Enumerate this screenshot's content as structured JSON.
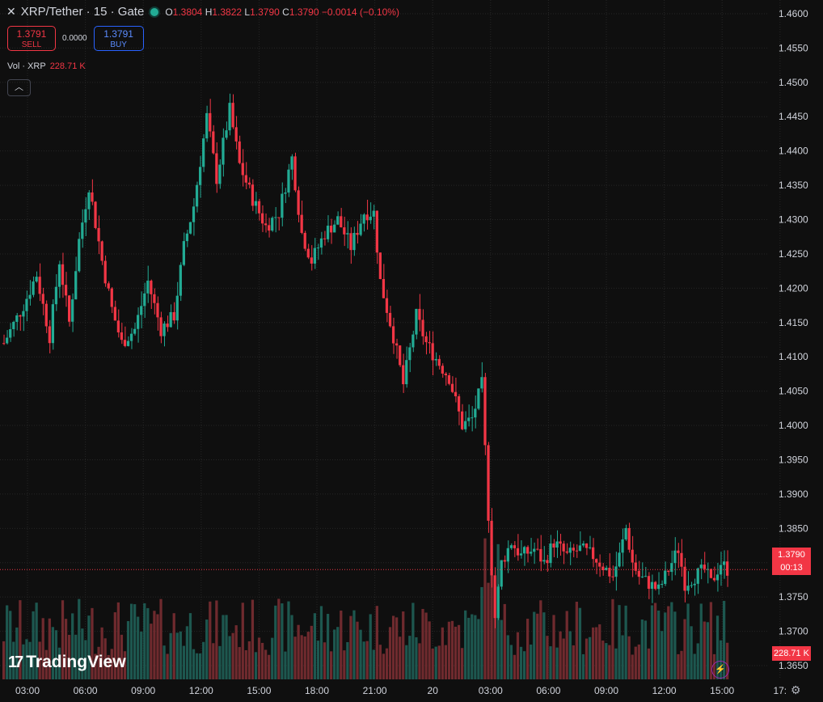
{
  "header": {
    "symbol": "XRP/Tether · 15 · Gate",
    "o_label": "O",
    "o": "1.3804",
    "h_label": "H",
    "h": "1.3822",
    "l_label": "L",
    "l": "1.3790",
    "c_label": "C",
    "c": "1.3790",
    "change": "−0.0014 (−0.10%)"
  },
  "trade": {
    "sell_price": "1.3791",
    "sell_label": "SELL",
    "spread": "0.0000",
    "buy_price": "1.3791",
    "buy_label": "BUY"
  },
  "volume": {
    "label": "Vol · XRP",
    "value": "228.71 K"
  },
  "price_tag": {
    "price": "1.3790",
    "countdown": "00:13"
  },
  "branding": "TradingView",
  "icons": [
    "close-icon",
    "status-dot-icon",
    "collapse-chevron-icon",
    "tradingview-logo-icon",
    "lightning-icon",
    "gear-icon"
  ],
  "colors": {
    "up": "#22ab94",
    "down": "#f23645",
    "background": "#0f0f0f",
    "grid": "#262626"
  },
  "chart_data": {
    "type": "candlestick",
    "y_ticks": [
      "1.4600",
      "1.4550",
      "1.4500",
      "1.4450",
      "1.4400",
      "1.4350",
      "1.4300",
      "1.4250",
      "1.4200",
      "1.4150",
      "1.4100",
      "1.4050",
      "1.4000",
      "1.3950",
      "1.3900",
      "1.3850",
      "1.3800",
      "1.3750",
      "1.3700",
      "1.3650"
    ],
    "ylim": [
      1.363,
      1.462
    ],
    "x_ticks": [
      "03:00",
      "06:00",
      "09:00",
      "12:00",
      "15:00",
      "18:00",
      "21:00",
      "20",
      "03:00",
      "06:00",
      "09:00",
      "12:00",
      "15:00",
      "17:"
    ],
    "grid": true,
    "last_price": 1.379,
    "close_path": [
      [
        0,
        1.412
      ],
      [
        6,
        1.4175
      ],
      [
        10,
        1.422
      ],
      [
        14,
        1.413
      ],
      [
        17,
        1.424
      ],
      [
        20,
        1.415
      ],
      [
        23,
        1.427
      ],
      [
        26,
        1.435
      ],
      [
        30,
        1.424
      ],
      [
        33,
        1.417
      ],
      [
        36,
        1.412
      ],
      [
        40,
        1.414
      ],
      [
        44,
        1.421
      ],
      [
        48,
        1.414
      ],
      [
        52,
        1.416
      ],
      [
        55,
        1.426
      ],
      [
        58,
        1.432
      ],
      [
        62,
        1.445
      ],
      [
        65,
        1.436
      ],
      [
        69,
        1.446
      ],
      [
        72,
        1.438
      ],
      [
        76,
        1.433
      ],
      [
        80,
        1.429
      ],
      [
        84,
        1.431
      ],
      [
        88,
        1.439
      ],
      [
        91,
        1.428
      ],
      [
        94,
        1.424
      ],
      [
        98,
        1.428
      ],
      [
        102,
        1.43
      ],
      [
        106,
        1.426
      ],
      [
        110,
        1.431
      ],
      [
        113,
        1.431
      ],
      [
        115,
        1.421
      ],
      [
        119,
        1.413
      ],
      [
        122,
        1.406
      ],
      [
        126,
        1.416
      ],
      [
        129,
        1.412
      ],
      [
        133,
        1.409
      ],
      [
        136,
        1.407
      ],
      [
        140,
        1.4
      ],
      [
        143,
        1.401
      ],
      [
        146,
        1.406
      ],
      [
        148,
        1.387
      ],
      [
        149,
        1.379
      ],
      [
        150,
        1.372
      ],
      [
        152,
        1.38
      ],
      [
        155,
        1.383
      ],
      [
        158,
        1.381
      ],
      [
        162,
        1.382
      ],
      [
        165,
        1.38
      ],
      [
        168,
        1.383
      ],
      [
        172,
        1.381
      ],
      [
        176,
        1.382
      ],
      [
        180,
        1.381
      ],
      [
        184,
        1.379
      ],
      [
        186,
        1.378
      ],
      [
        188,
        1.381
      ],
      [
        190,
        1.385
      ],
      [
        192,
        1.38
      ],
      [
        194,
        1.378
      ],
      [
        197,
        1.377
      ],
      [
        200,
        1.376
      ],
      [
        203,
        1.379
      ],
      [
        206,
        1.382
      ],
      [
        208,
        1.377
      ],
      [
        211,
        1.378
      ],
      [
        214,
        1.379
      ],
      [
        216,
        1.377
      ],
      [
        219,
        1.38
      ],
      [
        221,
        1.379
      ]
    ],
    "volume_last": "228.71 K"
  }
}
